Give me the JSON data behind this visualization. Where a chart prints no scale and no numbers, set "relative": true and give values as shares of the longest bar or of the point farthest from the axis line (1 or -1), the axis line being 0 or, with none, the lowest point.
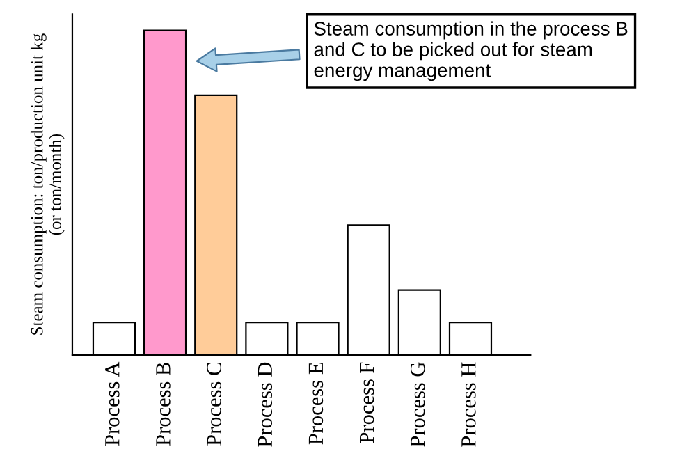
{
  "chart_data": {
    "type": "bar",
    "relative": true,
    "ylabel": "Steam consumption: ton/production unit kg\n(or ton/month)",
    "categories": [
      "Process A",
      "Process B",
      "Process C",
      "Process D",
      "Process E",
      "Process F",
      "Process G",
      "Process H"
    ],
    "values": [
      0.1,
      1,
      0.8,
      0.1,
      0.1,
      0.4,
      0.2,
      0.1
    ],
    "colors": [
      "#ffffff",
      "#ff99cc",
      "#ffcc99",
      "#ffffff",
      "#ffffff",
      "#ffffff",
      "#ffffff",
      "#ffffff"
    ],
    "annotations": [
      "Steam consumption in the process B\nand C to be picked out for steam\nenergy management"
    ],
    "grid": false
  }
}
